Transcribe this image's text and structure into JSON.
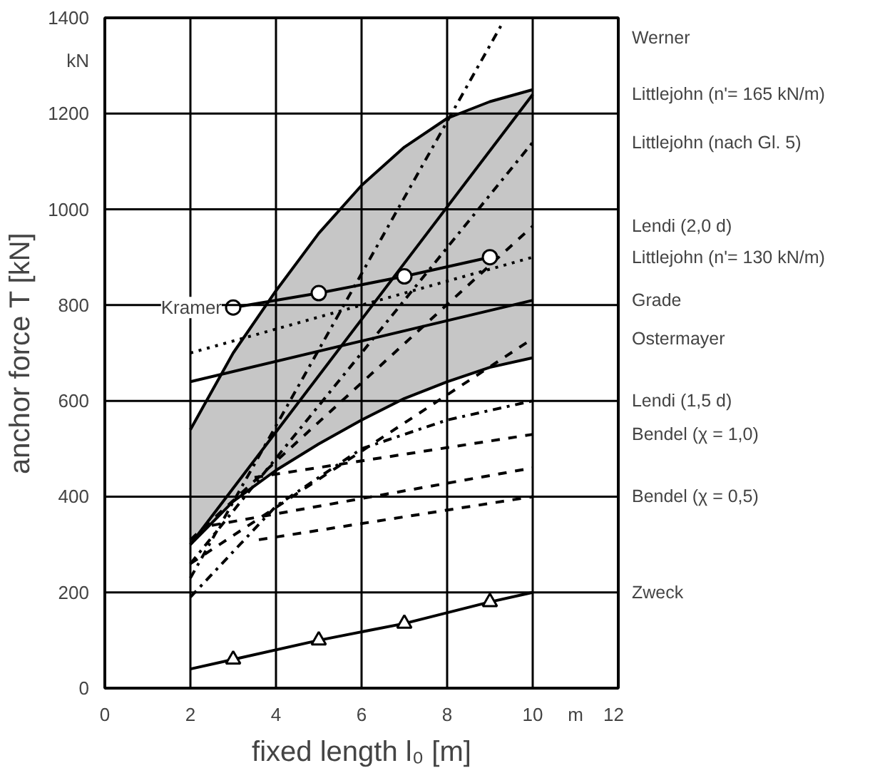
{
  "chart_data": {
    "type": "line",
    "xlabel": "fixed length l₀ [m]",
    "ylabel": "anchor force T [kN]",
    "xlim": [
      0,
      12
    ],
    "ylim": [
      0,
      1400
    ],
    "xticks": [
      0,
      2,
      4,
      6,
      8,
      10,
      {
        "value": 11,
        "label": "m"
      },
      12
    ],
    "yticks": [
      0,
      200,
      400,
      600,
      800,
      1000,
      1200,
      1400,
      {
        "value": 1310,
        "label": "kN"
      }
    ],
    "grid": true,
    "annotations": [
      {
        "text": "Kramer",
        "x": 3,
        "y": 795
      }
    ],
    "series": [
      {
        "type": "line",
        "color": "#000000",
        "line_style": "solid",
        "x": [
          2,
          3,
          4,
          5,
          6,
          7,
          8,
          9,
          10
        ],
        "values": [
          300,
          390,
          455,
          510,
          560,
          605,
          640,
          670,
          690
        ],
        "lower": [
          300,
          390,
          455,
          510,
          560,
          605,
          640,
          670,
          690
        ],
        "upper": [
          540,
          700,
          830,
          950,
          1050,
          1130,
          1190,
          1225,
          1250
        ]
      },
      {
        "type": "line",
        "color": "#000000",
        "line_style": "solid",
        "x": [
          2,
          3,
          4,
          5,
          6,
          7,
          8,
          9,
          10
        ],
        "values": [
          540,
          700,
          830,
          950,
          1050,
          1130,
          1190,
          1225,
          1250
        ]
      },
      {
        "name": "Werner",
        "color": "#000000",
        "line_style": "dashdot",
        "x": [
          2,
          9.3
        ],
        "values": [
          230,
          1390
        ]
      },
      {
        "name": "Littlejohn (n'= 165 kN/m)",
        "color": "#000000",
        "line_style": "solid",
        "x": [
          2,
          10
        ],
        "values": [
          300,
          1240
        ]
      },
      {
        "name": "Littlejohn (nach Gl. 5)",
        "color": "#000000",
        "line_style": "dashdot",
        "x": [
          2,
          10
        ],
        "values": [
          260,
          1140
        ]
      },
      {
        "name": "Lendi (2,0 d)",
        "color": "#000000",
        "line_style": "dashed",
        "x": [
          2,
          10
        ],
        "values": [
          310,
          965
        ]
      },
      {
        "name": "Littlejohn (n'= 130 kN/m)",
        "color": "#000000",
        "line_style": "dotted",
        "x": [
          2,
          10
        ],
        "values": [
          700,
          900
        ]
      },
      {
        "color": "#000000",
        "line_style": "solid",
        "marker": "circle",
        "x": [
          3,
          5,
          7,
          9
        ],
        "values": [
          795,
          825,
          860,
          900
        ]
      },
      {
        "name": "Grade",
        "color": "#000000",
        "line_style": "solid",
        "x": [
          2,
          10
        ],
        "values": [
          640,
          810
        ]
      },
      {
        "name": "Ostermayer",
        "color": "#000000",
        "line_style": "dashed",
        "x": [
          2,
          10
        ],
        "values": [
          260,
          730
        ]
      },
      {
        "name": "Lendi (1,5 d)",
        "color": "#000000",
        "line_style": "dashdot",
        "x": [
          2,
          4,
          6,
          8,
          10
        ],
        "values": [
          190,
          380,
          500,
          560,
          600
        ]
      },
      {
        "name": "Bendel (χ = 1,0)",
        "color": "#000000",
        "line_style": "dashed",
        "x": [
          3.5,
          10
        ],
        "values": [
          440,
          530
        ]
      },
      {
        "color": "#000000",
        "line_style": "dashed",
        "x": [
          2.5,
          10
        ],
        "values": [
          340,
          460
        ]
      },
      {
        "name": "Bendel (χ = 0,5)",
        "color": "#000000",
        "line_style": "dashed",
        "x": [
          3.6,
          10
        ],
        "values": [
          310,
          400
        ]
      },
      {
        "name": "Zweck",
        "color": "#000000",
        "line_style": "solid",
        "marker": "triangle",
        "x": [
          2,
          3,
          5,
          7,
          9,
          10
        ],
        "values": [
          40,
          60,
          100,
          135,
          180,
          200
        ]
      }
    ]
  }
}
